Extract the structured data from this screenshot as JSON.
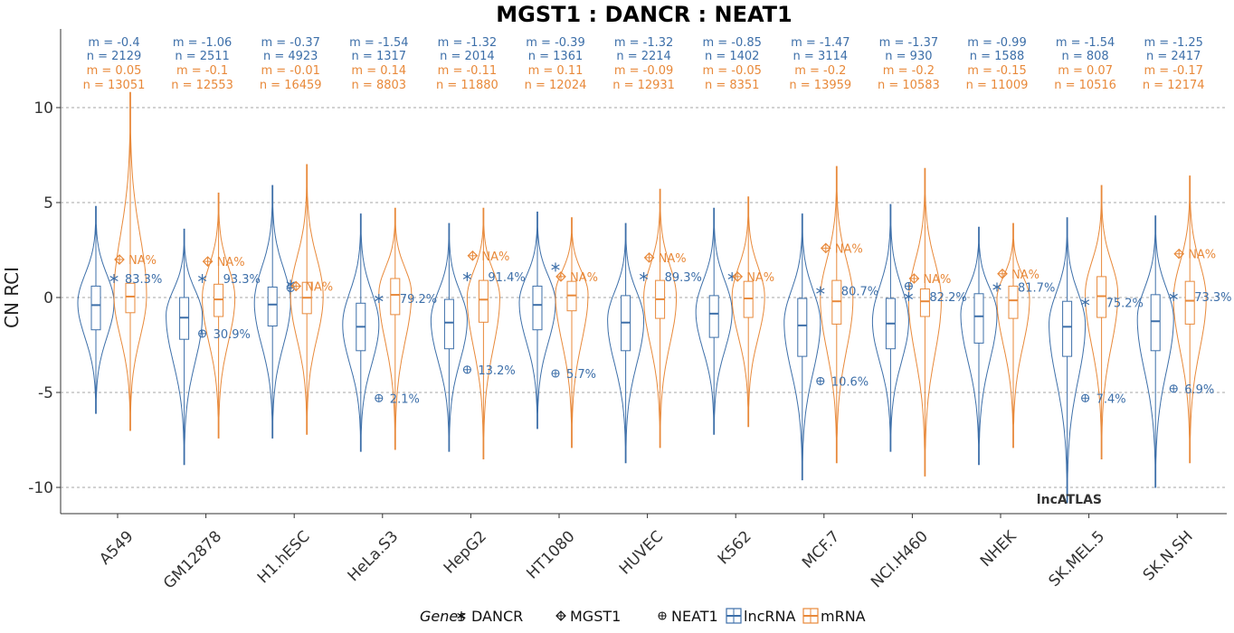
{
  "chart_data": {
    "type": "violin",
    "title": "MGST1 : DANCR : NEAT1",
    "ylabel": "CN RCI",
    "ylim": [
      -11,
      13.5
    ],
    "yticks": [
      10,
      5,
      0,
      -5,
      -10
    ],
    "ytick_labels": [
      "10",
      "5",
      "0",
      "-5",
      "-10"
    ],
    "gridlines_y": [
      10,
      5,
      0,
      -5,
      -10
    ],
    "watermark": "lncATLAS",
    "colors": {
      "lncRNA": "#3d6fa9",
      "mRNA": "#e8893a"
    },
    "na_label": "NA%",
    "legend": {
      "title": "Genes",
      "items": [
        "DANCR",
        "MGST1",
        "NEAT1"
      ],
      "series": [
        "lncRNA",
        "mRNA"
      ]
    },
    "cells": [
      {
        "name": "A549",
        "lnc": {
          "m": "m = -0.4",
          "n": "n = 2129",
          "median": -0.4,
          "q1": -1.7,
          "q3": 0.6,
          "wlo": -5.6,
          "whi": 4.5
        },
        "mrna": {
          "m": "m = 0.05",
          "n": "n = 13051",
          "median": 0.05,
          "q1": -0.8,
          "q3": 0.75,
          "wlo": -6.5,
          "whi": 10.5
        },
        "dancr": 1.0,
        "neat1": null,
        "neat1_pct": "83.3%",
        "neat1_y": 1.0,
        "mgst1": 2.0
      },
      {
        "name": "GM12878",
        "lnc": {
          "m": "m = -1.06",
          "n": "n = 2511",
          "median": -1.06,
          "q1": -2.2,
          "q3": 0.0,
          "wlo": -8.3,
          "whi": 3.3
        },
        "mrna": {
          "m": "m = -0.1",
          "n": "n = 12553",
          "median": -0.1,
          "q1": -1.0,
          "q3": 0.7,
          "wlo": -6.9,
          "whi": 5.2
        },
        "dancr": 1.0,
        "neat1": -1.9,
        "neat1_pct": "30.9%",
        "dancr_pct": "93.3%",
        "mgst1": 1.9
      },
      {
        "name": "H1.hESC",
        "lnc": {
          "m": "m = -0.37",
          "n": "n = 4923",
          "median": -0.37,
          "q1": -1.5,
          "q3": 0.55,
          "wlo": -6.9,
          "whi": 5.6
        },
        "mrna": {
          "m": "m = -0.01",
          "n": "n = 16459",
          "median": -0.01,
          "q1": -0.85,
          "q3": 0.8,
          "wlo": -6.7,
          "whi": 6.7
        },
        "dancr": 0.7,
        "neat1": 0.5,
        "neat1_pct": "",
        "dancr_pct": "",
        "mgst1": 0.6
      },
      {
        "name": "HeLa.S3",
        "lnc": {
          "m": "m = -1.54",
          "n": "n = 1317",
          "median": -1.54,
          "q1": -2.8,
          "q3": -0.3,
          "wlo": -7.6,
          "whi": 4.1
        },
        "mrna": {
          "m": "m = 0.14",
          "n": "n = 8803",
          "median": 0.14,
          "q1": -0.9,
          "q3": 1.0,
          "wlo": -7.5,
          "whi": 4.4
        },
        "dancr": -0.05,
        "neat1": -5.3,
        "neat1_pct": "2.1%",
        "dancr_pct": "79.2%",
        "mgst1": null
      },
      {
        "name": "HepG2",
        "lnc": {
          "m": "m = -1.32",
          "n": "n = 2014",
          "median": -1.32,
          "q1": -2.7,
          "q3": -0.1,
          "wlo": -7.6,
          "whi": 3.6
        },
        "mrna": {
          "m": "m = -0.11",
          "n": "n = 11880",
          "median": -0.11,
          "q1": -1.3,
          "q3": 0.9,
          "wlo": -8.0,
          "whi": 4.4
        },
        "dancr": 1.1,
        "neat1": -3.8,
        "neat1_pct": "13.2%",
        "dancr_pct": "91.4%",
        "mgst1": 2.2
      },
      {
        "name": "HT1080",
        "lnc": {
          "m": "m = -0.39",
          "n": "n = 1361",
          "median": -0.39,
          "q1": -1.7,
          "q3": 0.6,
          "wlo": -6.4,
          "whi": 4.2
        },
        "mrna": {
          "m": "m = 0.11",
          "n": "n = 12024",
          "median": 0.11,
          "q1": -0.7,
          "q3": 0.85,
          "wlo": -7.4,
          "whi": 3.9
        },
        "dancr": 1.6,
        "neat1": -4.0,
        "neat1_pct": "5.7%",
        "dancr_pct": "",
        "mgst1": 1.1
      },
      {
        "name": "HUVEC",
        "lnc": {
          "m": "m = -1.32",
          "n": "n = 2214",
          "median": -1.32,
          "q1": -2.8,
          "q3": 0.1,
          "wlo": -8.2,
          "whi": 3.6
        },
        "mrna": {
          "m": "m = -0.09",
          "n": "n = 12931",
          "median": -0.09,
          "q1": -1.1,
          "q3": 0.9,
          "wlo": -7.4,
          "whi": 5.4
        },
        "dancr": 1.1,
        "neat1": null,
        "neat1_pct": "",
        "dancr_pct": "89.3%",
        "mgst1": 2.1
      },
      {
        "name": "K562",
        "lnc": {
          "m": "m = -0.85",
          "n": "n = 1402",
          "median": -0.85,
          "q1": -2.1,
          "q3": 0.1,
          "wlo": -6.7,
          "whi": 4.4
        },
        "mrna": {
          "m": "m = -0.05",
          "n": "n = 8351",
          "median": -0.05,
          "q1": -1.05,
          "q3": 0.85,
          "wlo": -6.3,
          "whi": 5.0
        },
        "dancr": 1.1,
        "neat1": null,
        "neat1_pct": "",
        "dancr_pct": "",
        "mgst1": 1.1
      },
      {
        "name": "MCF.7",
        "lnc": {
          "m": "m = -1.47",
          "n": "n = 3114",
          "median": -1.47,
          "q1": -3.1,
          "q3": -0.05,
          "wlo": -9.1,
          "whi": 4.1
        },
        "mrna": {
          "m": "m = -0.2",
          "n": "n = 13959",
          "median": -0.2,
          "q1": -1.4,
          "q3": 0.9,
          "wlo": -8.2,
          "whi": 6.6
        },
        "dancr": 0.35,
        "neat1": -4.4,
        "neat1_pct": "10.6%",
        "dancr_pct": "80.7%",
        "mgst1": 2.6
      },
      {
        "name": "NCI.H460",
        "lnc": {
          "m": "m = -1.37",
          "n": "n = 930",
          "median": -1.37,
          "q1": -2.7,
          "q3": -0.05,
          "wlo": -7.6,
          "whi": 4.6
        },
        "mrna": {
          "m": "m = -0.2",
          "n": "n = 10583",
          "median": -0.2,
          "q1": -1.0,
          "q3": 0.45,
          "wlo": -8.9,
          "whi": 6.5
        },
        "dancr": 0.05,
        "neat1": 0.6,
        "neat1_pct": "",
        "dancr_pct": "82.2%",
        "mgst1": 1.0
      },
      {
        "name": "NHEK",
        "lnc": {
          "m": "m = -0.99",
          "n": "n = 1588",
          "median": -0.99,
          "q1": -2.4,
          "q3": 0.2,
          "wlo": -8.3,
          "whi": 3.4
        },
        "mrna": {
          "m": "m = -0.15",
          "n": "n = 11009",
          "median": -0.15,
          "q1": -1.1,
          "q3": 0.6,
          "wlo": -7.4,
          "whi": 3.6
        },
        "dancr": 0.55,
        "neat1": null,
        "neat1_pct": "",
        "dancr_pct": "81.7%",
        "mgst1": 1.25
      },
      {
        "name": "SK.MEL.5",
        "lnc": {
          "m": "m = -1.54",
          "n": "n = 808",
          "median": -1.54,
          "q1": -3.1,
          "q3": -0.2,
          "wlo": -10.3,
          "whi": 3.9
        },
        "mrna": {
          "m": "m = 0.07",
          "n": "n = 10516",
          "median": 0.07,
          "q1": -1.05,
          "q3": 1.1,
          "wlo": -8.0,
          "whi": 5.6
        },
        "dancr": -0.25,
        "neat1": -5.3,
        "neat1_pct": "7.4%",
        "dancr_pct": "75.2%",
        "mgst1": null
      },
      {
        "name": "SK.N.SH",
        "lnc": {
          "m": "m = -1.25",
          "n": "n = 2417",
          "median": -1.25,
          "q1": -2.8,
          "q3": 0.15,
          "wlo": -9.5,
          "whi": 4.0
        },
        "mrna": {
          "m": "m = -0.17",
          "n": "n = 12174",
          "median": -0.17,
          "q1": -1.4,
          "q3": 0.85,
          "wlo": -8.2,
          "whi": 6.1
        },
        "dancr": 0.05,
        "neat1": -4.8,
        "neat1_pct": "6.9%",
        "dancr_pct": "73.3%",
        "mgst1": 2.3
      }
    ]
  }
}
